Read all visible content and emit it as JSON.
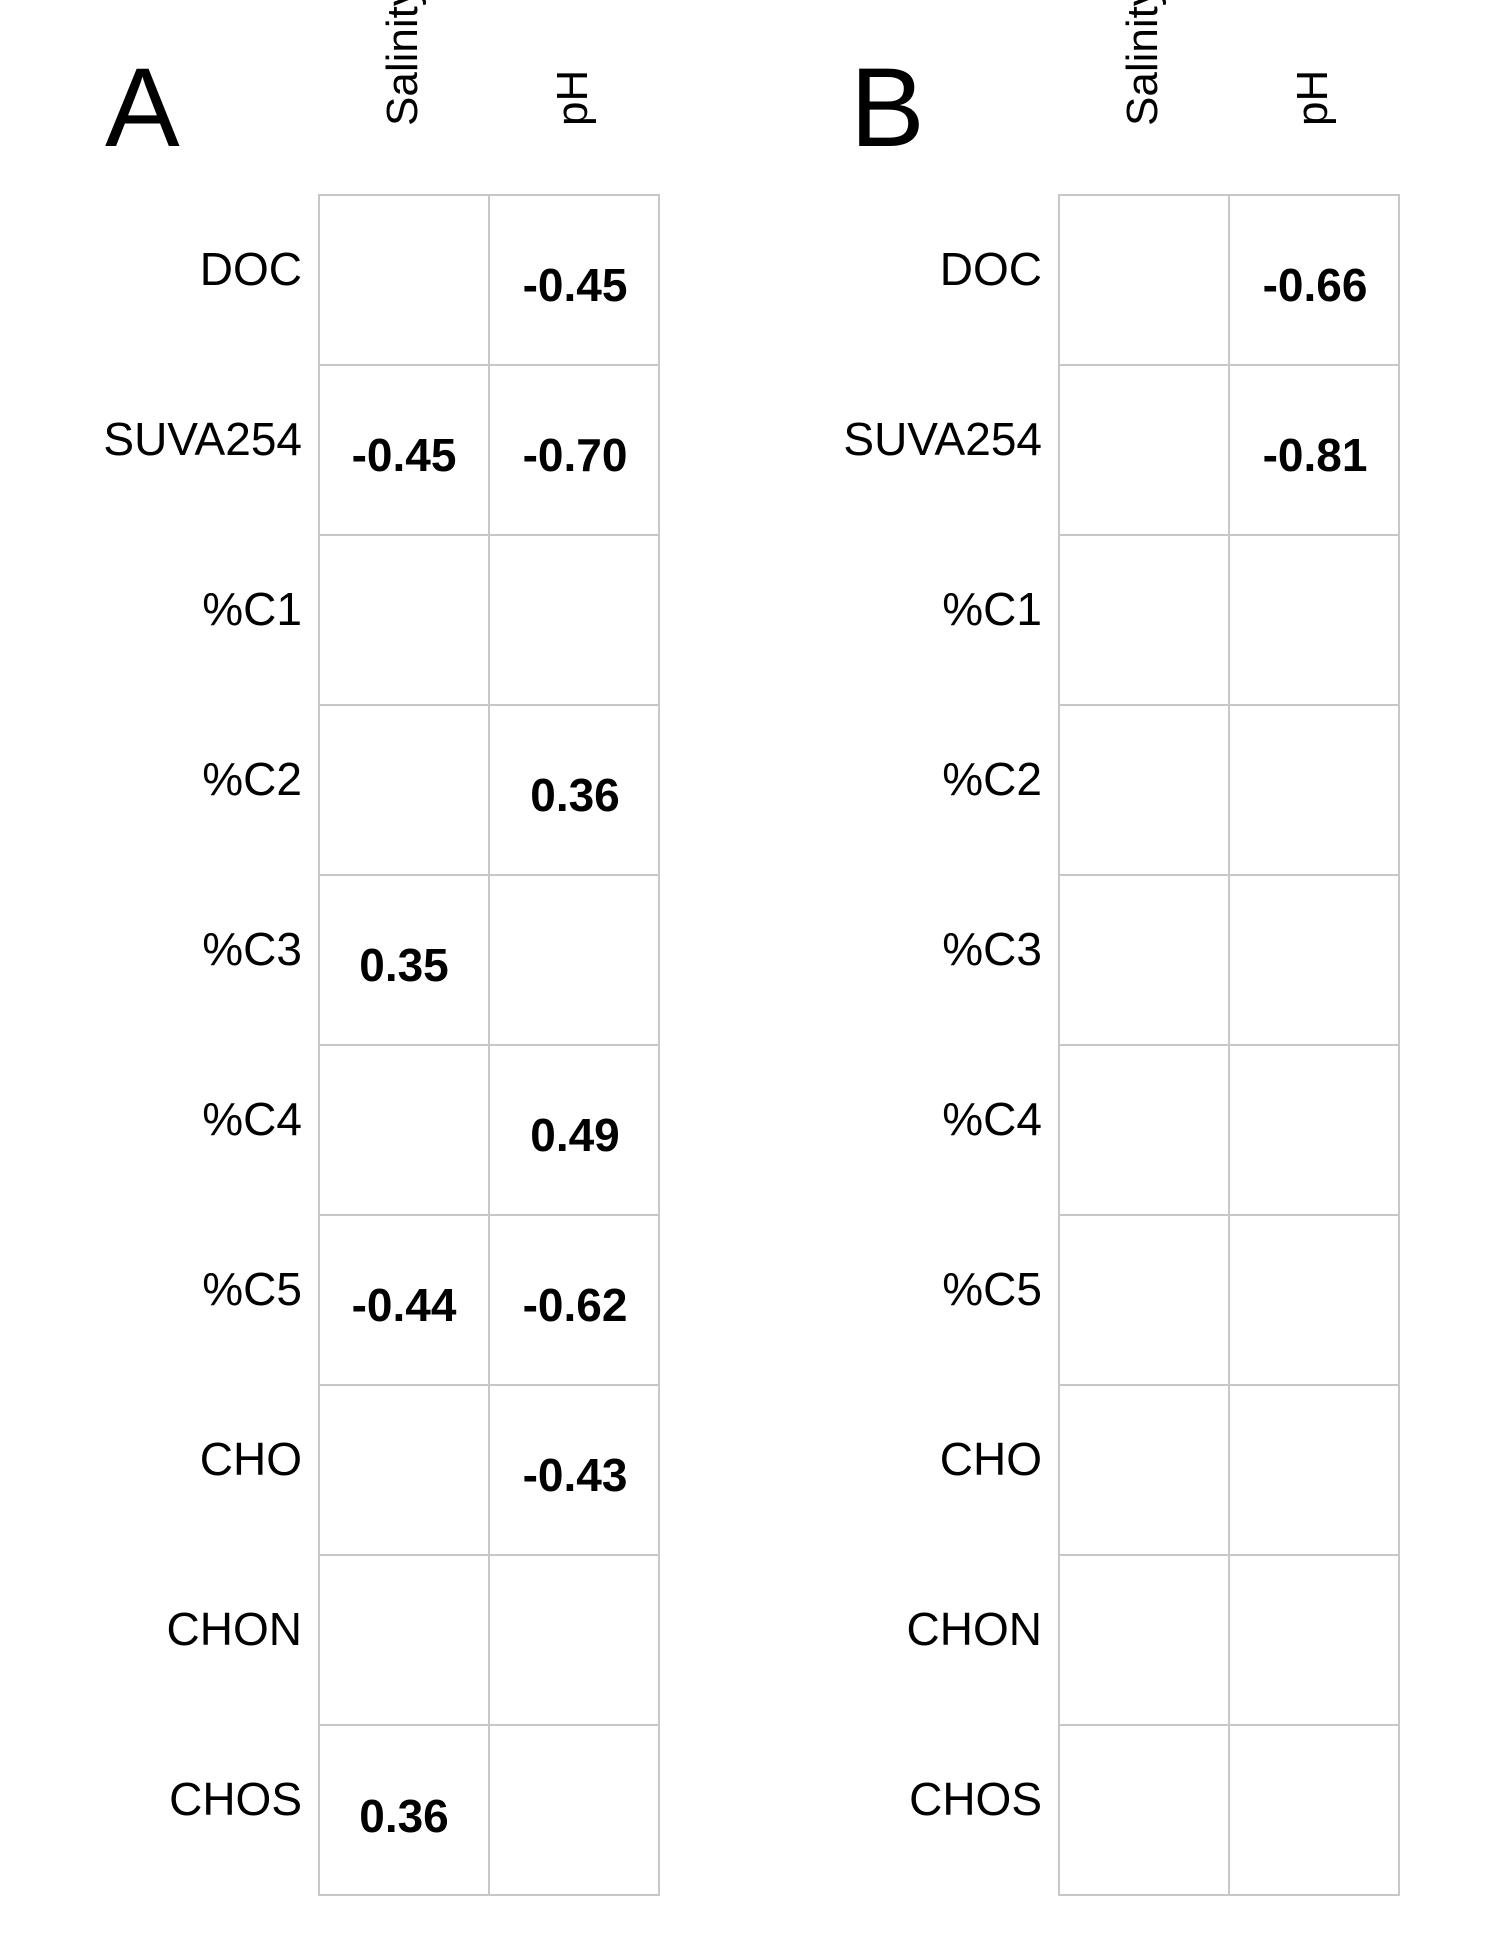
{
  "chart_data": [
    {
      "type": "table",
      "panel_label": "A",
      "columns": [
        "Salinity",
        "pH"
      ],
      "rows": [
        "DOC",
        "SUVA254",
        "%C1",
        "%C2",
        "%C3",
        "%C4",
        "%C5",
        "CHO",
        "CHON",
        "CHOS"
      ],
      "values": [
        [
          "",
          "-0.45"
        ],
        [
          "-0.45",
          "-0.70"
        ],
        [
          "",
          ""
        ],
        [
          "",
          "0.36"
        ],
        [
          "0.35",
          ""
        ],
        [
          "",
          "0.49"
        ],
        [
          "-0.44",
          "-0.62"
        ],
        [
          "",
          "-0.43"
        ],
        [
          "",
          ""
        ],
        [
          "0.36",
          ""
        ]
      ],
      "grid_color": "#c8c8c8"
    },
    {
      "type": "table",
      "panel_label": "B",
      "columns": [
        "Salinity",
        "pH"
      ],
      "rows": [
        "DOC",
        "SUVA254",
        "%C1",
        "%C2",
        "%C3",
        "%C4",
        "%C5",
        "CHO",
        "CHON",
        "CHOS"
      ],
      "values": [
        [
          "",
          "-0.66"
        ],
        [
          "",
          "-0.81"
        ],
        [
          "",
          ""
        ],
        [
          "",
          ""
        ],
        [
          "",
          ""
        ],
        [
          "",
          ""
        ],
        [
          "",
          ""
        ],
        [
          "",
          ""
        ],
        [
          "",
          ""
        ],
        [
          "",
          ""
        ]
      ],
      "grid_color": "#c8c8c8"
    }
  ]
}
